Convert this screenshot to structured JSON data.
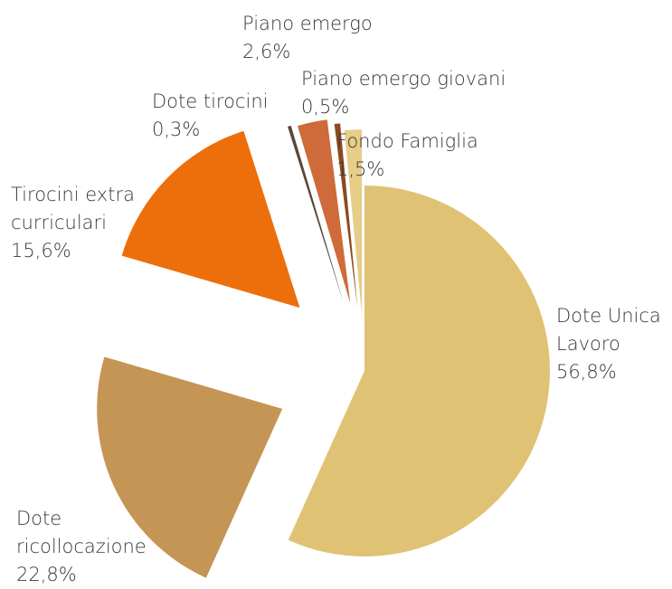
{
  "chart_data": {
    "type": "pie",
    "categories": [
      "Dote Unica Lavoro",
      "Dote ricollocazione",
      "Tirocini extra curriculari",
      "Dote tirocini",
      "Piano emergo",
      "Piano emergo giovani",
      "Fondo Famiglia"
    ],
    "values": [
      56.8,
      22.8,
      15.6,
      0.3,
      2.6,
      0.5,
      1.5
    ],
    "value_labels": [
      "56,8%",
      "22,8%",
      "15,6%",
      "0,3%",
      "2,6%",
      "0,5%",
      "1,5%"
    ],
    "colors": [
      "#e0c274",
      "#c49555",
      "#ec6f0c",
      "#5a4838",
      "#cf6b3a",
      "#8b4a20",
      "#e6cd88"
    ]
  }
}
